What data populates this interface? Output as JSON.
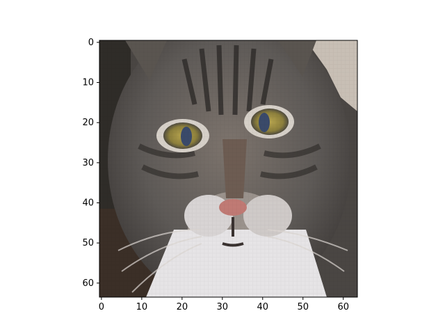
{
  "figure": {
    "background": "#ffffff",
    "image_description_hint": "",
    "image": {
      "grid_size": 64,
      "subject_icon": "tabby-cat-face"
    },
    "x_axis": {
      "ticks": [
        0,
        10,
        20,
        30,
        40,
        50,
        60
      ]
    },
    "y_axis": {
      "ticks": [
        0,
        10,
        20,
        30,
        40,
        50,
        60
      ]
    }
  }
}
